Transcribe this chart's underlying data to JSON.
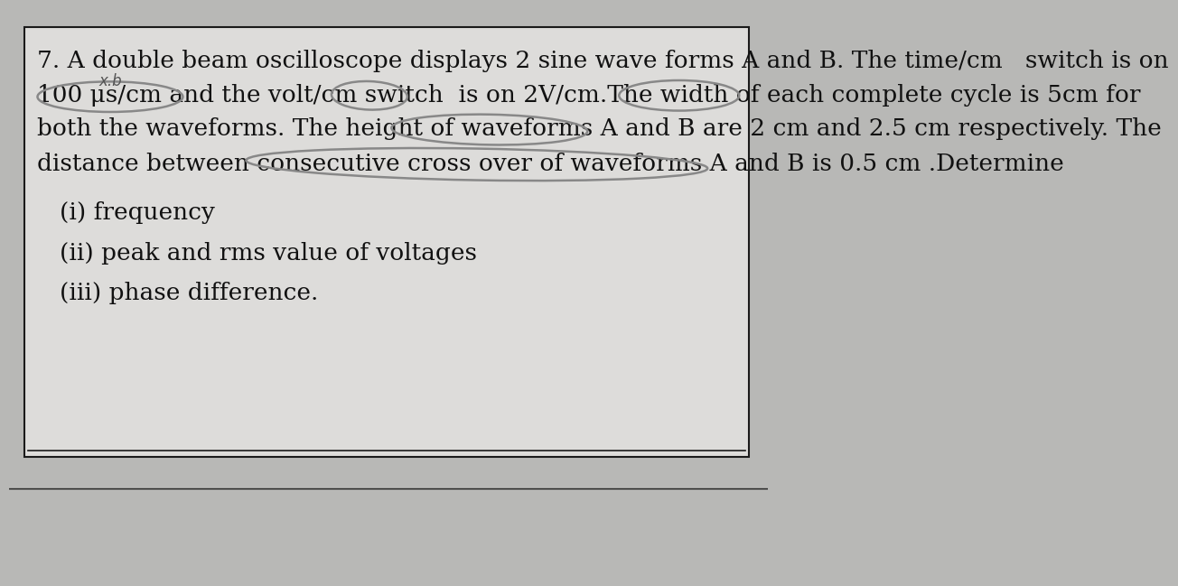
{
  "bg_color": "#b8b8b6",
  "paper_color": "#dddcda",
  "border_color": "#1a1a1a",
  "text_color": "#111111",
  "ellipse_color": "#888888",
  "line1": "7. A double beam oscilloscope displays 2 sine wave forms A and B. The time/cm   switch is on",
  "line2": "100 μs/cm and the volt/cm switch  is on 2V/cm.The width of each complete cycle is 5cm for",
  "line3": "both the waveforms. The height of waveforms A and B are 2 cm and 2.5 cm respectively. The",
  "line4": "distance between consecutive cross over of waveforms A and B is 0.5 cm .Determine",
  "line5": "(i) frequency",
  "line6": "(ii) peak and rms value of voltages",
  "line7": "(iii) phase difference.",
  "font_size_main": 19,
  "font_family": "DejaVu Serif",
  "annot_text": "x.b"
}
